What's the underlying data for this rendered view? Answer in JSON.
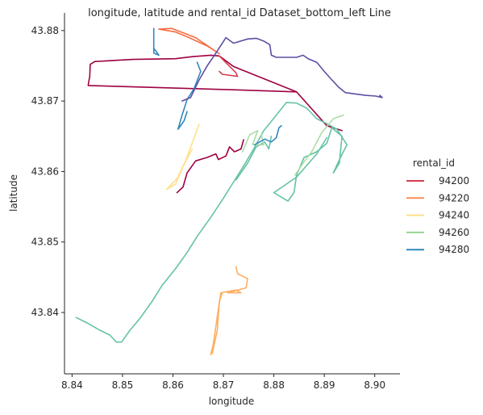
{
  "chart_data": {
    "type": "line",
    "title": "longitude, latitude and rental_id Dataset_bottom_left Line",
    "xlabel": "longitude",
    "ylabel": "latitude",
    "xlim": [
      8.8385,
      8.905
    ],
    "ylim": [
      43.8313,
      43.8825
    ],
    "xticks": [
      8.84,
      8.85,
      8.86,
      8.87,
      8.88,
      8.89,
      8.9
    ],
    "xtick_labels": [
      "8.84",
      "8.85",
      "8.86",
      "8.87",
      "8.88",
      "8.89",
      "8.90"
    ],
    "yticks": [
      43.84,
      43.85,
      43.86,
      43.87,
      43.88
    ],
    "ytick_labels": [
      "43.84",
      "43.85",
      "43.86",
      "43.87",
      "43.88"
    ],
    "grid": false,
    "legend": {
      "title": "rental_id",
      "placement": "right",
      "entries": [
        {
          "label": "94200",
          "color": "#d53e4f"
        },
        {
          "label": "94220",
          "color": "#fc8d59"
        },
        {
          "label": "94240",
          "color": "#fee08b"
        },
        {
          "label": "94260",
          "color": "#99d594"
        },
        {
          "label": "94280",
          "color": "#3288bd"
        }
      ]
    },
    "series": [
      {
        "color": "#9e0142",
        "points": [
          [
            8.8432,
            43.8723
          ],
          [
            8.8435,
            43.8735
          ],
          [
            8.8436,
            43.8752
          ],
          [
            8.8445,
            43.8756
          ],
          [
            8.852,
            43.8759
          ],
          [
            8.8605,
            43.876
          ],
          [
            8.864,
            43.8763
          ],
          [
            8.8675,
            43.8765
          ],
          [
            8.8692,
            43.8764
          ],
          [
            8.872,
            43.8749
          ],
          [
            8.8845,
            43.8713
          ],
          [
            8.8905,
            43.8665
          ],
          [
            8.8935,
            43.8658
          ]
        ]
      },
      {
        "color": "#9e0142",
        "points": [
          [
            8.8432,
            43.8722
          ],
          [
            8.872,
            43.8716
          ],
          [
            8.8845,
            43.8713
          ]
        ]
      },
      {
        "color": "#9e0142",
        "points": [
          [
            8.8608,
            43.857
          ],
          [
            8.862,
            43.8578
          ],
          [
            8.8628,
            43.8598
          ],
          [
            8.8645,
            43.8615
          ],
          [
            8.8668,
            43.862
          ],
          [
            8.8685,
            43.8625
          ],
          [
            8.869,
            43.8617
          ],
          [
            8.8705,
            43.8622
          ],
          [
            8.8712,
            43.8635
          ],
          [
            8.8722,
            43.8628
          ],
          [
            8.8735,
            43.8632
          ],
          [
            8.874,
            43.8645
          ]
        ]
      },
      {
        "color": "#d53e4f",
        "points": [
          [
            8.8692,
            43.8764
          ],
          [
            8.8725,
            43.874
          ],
          [
            8.8728,
            43.8735
          ],
          [
            8.8698,
            43.8738
          ],
          [
            8.8692,
            43.8742
          ]
        ]
      },
      {
        "color": "#f46d43",
        "points": [
          [
            8.8572,
            43.8802
          ],
          [
            8.8605,
            43.8798
          ],
          [
            8.8632,
            43.879
          ],
          [
            8.8668,
            43.8778
          ],
          [
            8.8692,
            43.8767
          ],
          [
            8.8645,
            43.879
          ],
          [
            8.8598,
            43.8803
          ],
          [
            8.8572,
            43.8802
          ]
        ]
      },
      {
        "color": "#fdae61",
        "points": [
          [
            8.8675,
            43.834
          ],
          [
            8.868,
            43.8355
          ],
          [
            8.8685,
            43.838
          ],
          [
            8.869,
            43.8405
          ],
          [
            8.8695,
            43.8428
          ],
          [
            8.8725,
            43.8432
          ],
          [
            8.8735,
            43.8428
          ],
          [
            8.8708,
            43.8428
          ],
          [
            8.8745,
            43.8435
          ],
          [
            8.8748,
            43.8448
          ],
          [
            8.8728,
            43.8455
          ],
          [
            8.8725,
            43.8465
          ]
        ]
      },
      {
        "color": "#fdae61",
        "points": [
          [
            8.8678,
            43.8342
          ],
          [
            8.8688,
            43.8375
          ],
          [
            8.8692,
            43.8415
          ],
          [
            8.8697,
            43.8427
          ]
        ]
      },
      {
        "color": "#fee08b",
        "points": [
          [
            8.8588,
            43.8575
          ],
          [
            8.8608,
            43.859
          ],
          [
            8.8625,
            43.8615
          ],
          [
            8.8652,
            43.8667
          ]
        ]
      },
      {
        "color": "#fee08b",
        "points": [
          [
            8.8588,
            43.8575
          ],
          [
            8.8605,
            43.8582
          ],
          [
            8.862,
            43.8607
          ],
          [
            8.8638,
            43.8632
          ]
        ]
      },
      {
        "color": "#66c2a5",
        "points": [
          [
            8.8408,
            43.8393
          ],
          [
            8.843,
            43.8385
          ],
          [
            8.8455,
            43.8375
          ],
          [
            8.8475,
            43.8368
          ],
          [
            8.8488,
            43.8358
          ],
          [
            8.8498,
            43.8358
          ],
          [
            8.8515,
            43.8375
          ],
          [
            8.8535,
            43.8392
          ],
          [
            8.8558,
            43.8415
          ],
          [
            8.8578,
            43.8438
          ],
          [
            8.8605,
            43.8462
          ],
          [
            8.8628,
            43.8485
          ],
          [
            8.8648,
            43.8508
          ],
          [
            8.8675,
            43.8535
          ],
          [
            8.8698,
            43.856
          ],
          [
            8.872,
            43.8585
          ],
          [
            8.8742,
            43.861
          ],
          [
            8.876,
            43.8632
          ],
          [
            8.878,
            43.8658
          ],
          [
            8.8805,
            43.868
          ],
          [
            8.8825,
            43.8698
          ],
          [
            8.8845,
            43.8697
          ],
          [
            8.8865,
            43.869
          ],
          [
            8.8885,
            43.8675
          ],
          [
            8.8905,
            43.8668
          ],
          [
            8.8925,
            43.866
          ],
          [
            8.8945,
            43.8638
          ],
          [
            8.8932,
            43.862
          ],
          [
            8.8918,
            43.8598
          ],
          [
            8.893,
            43.8612
          ],
          [
            8.8935,
            43.865
          ],
          [
            8.8915,
            43.8662
          ],
          [
            8.8905,
            43.864
          ],
          [
            8.8885,
            43.8628
          ],
          [
            8.886,
            43.862
          ],
          [
            8.8845,
            43.8595
          ],
          [
            8.884,
            43.857
          ],
          [
            8.8828,
            43.8558
          ],
          [
            8.88,
            43.857
          ],
          [
            8.8845,
            43.8592
          ],
          [
            8.8885,
            43.8625
          ],
          [
            8.8905,
            43.8648
          ]
        ]
      },
      {
        "color": "#66c2a5",
        "points": [
          [
            8.8725,
            43.8588
          ],
          [
            8.8748,
            43.8612
          ],
          [
            8.8765,
            43.8635
          ],
          [
            8.8782,
            43.8642
          ],
          [
            8.879,
            43.8632
          ],
          [
            8.8795,
            43.865
          ]
        ]
      },
      {
        "color": "#abdda4",
        "points": [
          [
            8.8842,
            43.8595
          ],
          [
            8.8858,
            43.8612
          ],
          [
            8.8875,
            43.8628
          ],
          [
            8.8895,
            43.8655
          ],
          [
            8.8918,
            43.8675
          ],
          [
            8.8938,
            43.868
          ]
        ]
      },
      {
        "color": "#abdda4",
        "points": [
          [
            8.8738,
            43.8628
          ],
          [
            8.8752,
            43.8652
          ],
          [
            8.8768,
            43.8658
          ],
          [
            8.8758,
            43.8638
          ],
          [
            8.878,
            43.8638
          ],
          [
            8.8775,
            43.8652
          ]
        ]
      },
      {
        "color": "#3288bd",
        "points": [
          [
            8.8562,
            43.8803
          ],
          [
            8.8562,
            43.8775
          ],
          [
            8.8572,
            43.8765
          ],
          [
            8.8562,
            43.8768
          ],
          [
            8.8562,
            43.8795
          ]
        ]
      },
      {
        "color": "#3288bd",
        "points": [
          [
            8.8648,
            43.8755
          ],
          [
            8.8655,
            43.8742
          ],
          [
            8.8642,
            43.8718
          ],
          [
            8.8628,
            43.8702
          ],
          [
            8.8618,
            43.868
          ],
          [
            8.861,
            43.866
          ],
          [
            8.8622,
            43.8672
          ],
          [
            8.8628,
            43.8685
          ]
        ]
      },
      {
        "color": "#3288bd",
        "points": [
          [
            8.8762,
            43.8638
          ],
          [
            8.8782,
            43.8646
          ],
          [
            8.8795,
            43.8642
          ],
          [
            8.8805,
            43.8648
          ],
          [
            8.881,
            43.8662
          ],
          [
            8.8815,
            43.8665
          ]
        ]
      },
      {
        "color": "#5e4fa2",
        "points": [
          [
            8.8618,
            43.87
          ],
          [
            8.8635,
            43.8705
          ],
          [
            8.8652,
            43.873
          ],
          [
            8.8668,
            43.875
          ],
          [
            8.8685,
            43.8768
          ],
          [
            8.8705,
            43.879
          ],
          [
            8.872,
            43.8782
          ],
          [
            8.8748,
            43.8788
          ],
          [
            8.8765,
            43.8789
          ],
          [
            8.878,
            43.8785
          ],
          [
            8.8792,
            43.878
          ],
          [
            8.8795,
            43.8765
          ],
          [
            8.8805,
            43.8762
          ],
          [
            8.8845,
            43.8762
          ],
          [
            8.8858,
            43.8765
          ],
          [
            8.8868,
            43.876
          ],
          [
            8.8885,
            43.8755
          ],
          [
            8.89,
            43.8742
          ],
          [
            8.8915,
            43.873
          ],
          [
            8.8928,
            43.872
          ],
          [
            8.8942,
            43.8712
          ],
          [
            8.8962,
            43.871
          ],
          [
            8.8982,
            43.8708
          ],
          [
            8.9002,
            43.8707
          ],
          [
            8.9015,
            43.8705
          ],
          [
            8.901,
            43.8708
          ]
        ]
      }
    ]
  }
}
